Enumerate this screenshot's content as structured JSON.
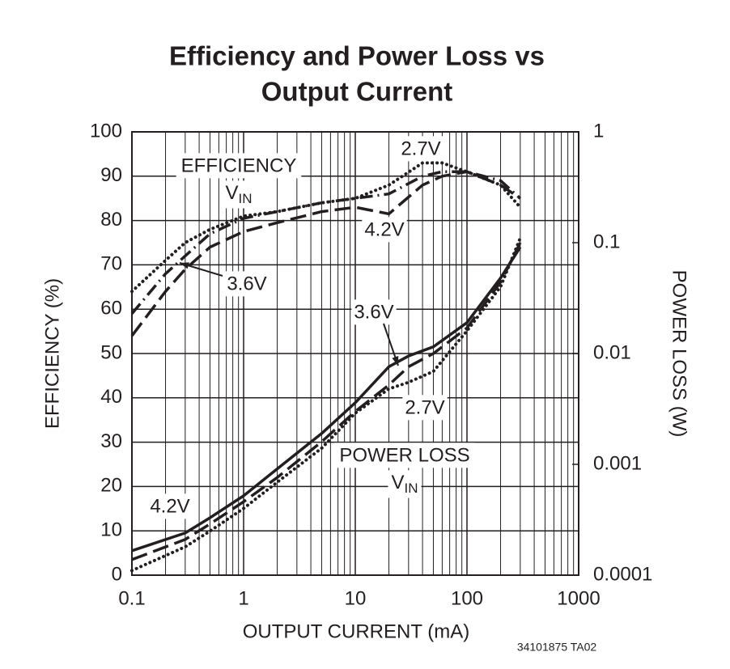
{
  "chart_data": {
    "type": "line",
    "title": [
      "Efficiency and Power Loss vs",
      "Output Current"
    ],
    "x_label": "OUTPUT CURRENT (mA)",
    "y_label": "EFFICIENCY (%)",
    "y2_label": "POWER LOSS (W)",
    "note": "34101875 TA02",
    "group_labels": [
      {
        "text": "EFFICIENCY",
        "sub": [
          "V",
          "IN"
        ]
      },
      {
        "text": "POWER LOSS",
        "sub": [
          "V",
          "IN"
        ]
      }
    ],
    "xscale": "log",
    "y2scale": "log",
    "xlim": [
      0.1,
      1000
    ],
    "xticks": [
      0.1,
      1,
      10,
      100,
      1000
    ],
    "ylim": [
      0,
      100
    ],
    "yticks": [
      0,
      10,
      20,
      30,
      40,
      50,
      60,
      70,
      80,
      90,
      100
    ],
    "y2lim": [
      0.0001,
      1
    ],
    "y2ticks": [
      0.0001,
      0.001,
      0.01,
      0.1,
      1
    ],
    "grid": true,
    "x_minor_grid": true,
    "color": "#231f20",
    "series": [
      {
        "name": "2.7V",
        "style": "dotted",
        "x": [
          0.1,
          0.2,
          0.3,
          0.5,
          1,
          2,
          5,
          10,
          20,
          40,
          60,
          100,
          200,
          300
        ],
        "values": [
          64,
          71,
          75,
          78,
          81,
          82,
          84,
          85,
          88,
          93,
          93,
          91,
          88,
          83
        ]
      },
      {
        "name": "3.6V",
        "style": "dashdot",
        "x": [
          0.1,
          0.2,
          0.3,
          0.5,
          1,
          2,
          5,
          10,
          20,
          40,
          60,
          100,
          200,
          300
        ],
        "values": [
          59,
          68,
          72,
          77,
          80.5,
          82,
          84,
          85,
          86,
          90,
          91,
          91,
          89,
          85
        ]
      },
      {
        "name": "4.2V",
        "style": "dashed",
        "x": [
          0.1,
          0.2,
          0.3,
          0.5,
          1,
          2,
          5,
          10,
          20,
          40,
          60,
          100,
          200,
          300
        ],
        "values": [
          54,
          64,
          69,
          74,
          77.5,
          79.5,
          82,
          83,
          81.5,
          88,
          90,
          91,
          88,
          85
        ]
      },
      {
        "name": "3.6V",
        "style": "solid",
        "axis": "y2",
        "x": [
          0.1,
          0.3,
          0.5,
          1,
          2,
          5,
          10,
          20,
          30,
          50,
          100,
          200,
          300
        ],
        "values": [
          0.000166,
          0.00024,
          0.00033,
          0.00052,
          0.00091,
          0.0019,
          0.0036,
          0.0076,
          0.0095,
          0.0115,
          0.019,
          0.048,
          0.091
        ]
      },
      {
        "name": "4.2V",
        "style": "dashed",
        "axis": "y2",
        "x": [
          0.1,
          0.3,
          0.5,
          1,
          2,
          5,
          10,
          20,
          30,
          50,
          100,
          200,
          300
        ],
        "values": [
          0.000138,
          0.00021,
          0.00029,
          0.00046,
          0.00076,
          0.0016,
          0.003,
          0.0052,
          0.0076,
          0.01,
          0.017,
          0.044,
          0.1
        ]
      },
      {
        "name": "2.7V",
        "style": "dotted",
        "axis": "y2",
        "x": [
          0.1,
          0.3,
          0.5,
          1,
          2,
          5,
          10,
          20,
          30,
          50,
          100,
          200,
          300
        ],
        "values": [
          0.00011,
          0.00018,
          0.00025,
          0.0004,
          0.00069,
          0.0014,
          0.0029,
          0.0048,
          0.0055,
          0.0069,
          0.016,
          0.04,
          0.11
        ]
      }
    ]
  }
}
